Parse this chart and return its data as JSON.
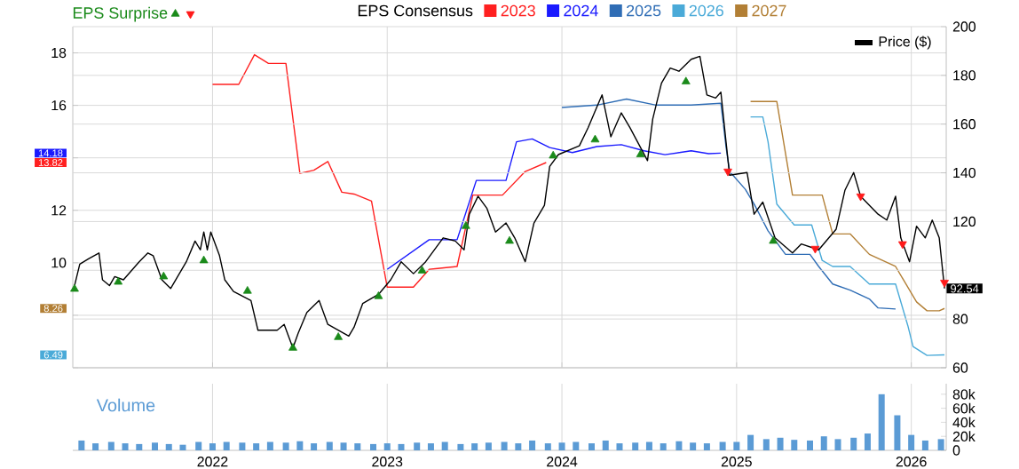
{
  "chart_data": [
    {
      "type": "line",
      "legend": "top",
      "legend_title": "EPS Consensus",
      "grid": true,
      "tick_labels": "y",
      "xlim": [
        2021.2,
        2026.2
      ],
      "xticks": [
        2022,
        2023,
        2024,
        2025,
        2026
      ],
      "ylim": [
        6,
        19
      ],
      "yticks": [
        {
          "value": 6,
          "label": null
        },
        6.49,
        {
          "value": 8,
          "label": null
        },
        8.26,
        10,
        12,
        13.82,
        {
          "value": 14,
          "label": null
        },
        14.18,
        16,
        18
      ],
      "y2lim": [
        60,
        200
      ],
      "y2ticks": [
        60,
        80,
        {
          "value": 100,
          "label": null
        },
        120,
        140,
        160,
        180,
        200
      ],
      "series": [
        {
          "name": "Price ($)",
          "type": "line",
          "axis": "y2",
          "color": "#000000",
          "x": [
            2021.21,
            2021.24,
            2021.29,
            2021.35,
            2021.37,
            2021.41,
            2021.44,
            2021.49,
            2021.58,
            2021.63,
            2021.66,
            2021.71,
            2021.76,
            2021.85,
            2021.9,
            2021.93,
            2021.95,
            2021.97,
            2021.99,
            2022.04,
            2022.07,
            2022.12,
            2022.22,
            2022.26,
            2022.37,
            2022.41,
            2022.46,
            2022.49,
            2022.54,
            2022.61,
            2022.66,
            2022.78,
            2022.81,
            2022.86,
            2022.95,
            2023.02,
            2023.08,
            2023.15,
            2023.22,
            2023.32,
            2023.39,
            2023.44,
            2023.47,
            2023.52,
            2023.57,
            2023.62,
            2023.68,
            2023.73,
            2023.79,
            2023.84,
            2023.9,
            2023.93,
            2023.98,
            2024.1,
            2024.15,
            2024.2,
            2024.23,
            2024.28,
            2024.34,
            2024.39,
            2024.49,
            2024.52,
            2024.57,
            2024.62,
            2024.67,
            2024.74,
            2024.79,
            2024.83,
            2024.88,
            2024.91,
            2024.94,
            2024.96,
            2025.06,
            2025.1,
            2025.15,
            2025.22,
            2025.32,
            2025.37,
            2025.47,
            2025.57,
            2025.62,
            2025.67,
            2025.71,
            2025.81,
            2025.86,
            2025.91,
            2025.94,
            2025.99,
            2026.03,
            2026.08,
            2026.12,
            2026.16,
            2026.19
          ],
          "values": [
            93.7,
            102.5,
            104.7,
            107.1,
            96.1,
            93.7,
            97.4,
            96.1,
            103.5,
            107.1,
            106,
            96.1,
            92.5,
            103.5,
            112,
            108.4,
            115.7,
            108.4,
            115.7,
            106,
            96.1,
            91.3,
            87.6,
            75.4,
            75.4,
            77.8,
            68.1,
            74.1,
            82.7,
            87.6,
            77.8,
            73,
            76.6,
            86.4,
            90.1,
            96.1,
            103.5,
            98.6,
            103.5,
            113.3,
            112,
            108.4,
            123,
            130.4,
            125.5,
            115.7,
            119.4,
            113.3,
            103.5,
            119.4,
            126.7,
            142.6,
            147.5,
            151.1,
            158.5,
            167,
            172,
            154.8,
            164.6,
            158.5,
            145,
            162.1,
            176.8,
            183,
            181.7,
            186.6,
            187.8,
            172,
            170.7,
            173.1,
            152.4,
            139,
            140.1,
            123,
            128,
            113.3,
            107.1,
            110.8,
            108.4,
            116.9,
            132.8,
            140.1,
            130.4,
            123,
            120.6,
            130.4,
            113.3,
            103.5,
            118.1,
            113.3,
            120.6,
            113.3,
            92.54
          ],
          "value_labels": [
            null,
            null,
            null,
            null,
            null,
            null,
            null,
            null,
            null,
            null,
            null,
            null,
            null,
            null,
            null,
            null,
            null,
            null,
            null,
            null,
            null,
            null,
            null,
            null,
            null,
            null,
            null,
            null,
            null,
            null,
            null,
            null,
            null,
            null,
            null,
            null,
            null,
            null,
            null,
            null,
            null,
            null,
            null,
            null,
            null,
            null,
            null,
            null,
            null,
            null,
            null,
            null,
            null,
            null,
            null,
            null,
            null,
            null,
            null,
            null,
            null,
            null,
            null,
            null,
            null,
            null,
            null,
            null,
            null,
            null,
            null,
            null,
            null,
            null,
            null,
            null,
            null,
            null,
            null,
            null,
            null,
            null,
            null,
            null,
            null,
            null,
            null,
            null,
            null,
            null,
            null,
            null,
            "92.54"
          ]
        },
        {
          "name": "2023",
          "type": "line",
          "color": "#ff2020",
          "x": [
            2022.0,
            2022.15,
            2022.24,
            2022.32,
            2022.42,
            2022.5,
            2022.58,
            2022.66,
            2022.74,
            2022.81,
            2022.91,
            2023.0,
            2023.15,
            2023.24,
            2023.4,
            2023.49,
            2023.66,
            2023.79,
            2023.91
          ],
          "values": [
            16.8,
            16.8,
            17.93,
            17.6,
            17.6,
            13.41,
            13.53,
            13.86,
            12.69,
            12.62,
            12.35,
            9.07,
            9.07,
            9.75,
            9.86,
            12.58,
            12.58,
            13.48,
            13.82
          ]
        },
        {
          "name": "2024",
          "type": "line",
          "color": "#1a1aff",
          "x": [
            2023.0,
            2023.24,
            2023.4,
            2023.51,
            2023.68,
            2023.74,
            2023.83,
            2023.93,
            2024.06,
            2024.2,
            2024.34,
            2024.47,
            2024.59,
            2024.74,
            2024.84,
            2024.91
          ],
          "values": [
            9.75,
            10.88,
            10.88,
            13.14,
            13.14,
            14.61,
            14.72,
            14.39,
            14.2,
            14.43,
            14.5,
            14.27,
            14.12,
            14.27,
            14.16,
            14.18
          ]
        },
        {
          "name": "2025",
          "type": "line",
          "color": "#2f6db5",
          "x": [
            2024.0,
            2024.2,
            2024.37,
            2024.54,
            2024.74,
            2024.91,
            2024.94,
            2024.96,
            2025.05,
            2025.1,
            2025.18,
            2025.23,
            2025.28,
            2025.42,
            2025.47,
            2025.55,
            2025.65,
            2025.76,
            2025.81,
            2025.91
          ],
          "values": [
            15.92,
            16.01,
            16.24,
            16.01,
            16.01,
            16.08,
            14.39,
            13.48,
            12.8,
            12.24,
            11.22,
            10.77,
            10.32,
            10.32,
            9.86,
            9.19,
            8.96,
            8.62,
            8.28,
            8.24
          ]
        },
        {
          "name": "2026",
          "type": "line",
          "color": "#4aaad8",
          "x": [
            2025.08,
            2025.15,
            2025.18,
            2025.23,
            2025.33,
            2025.43,
            2025.49,
            2025.55,
            2025.65,
            2025.76,
            2025.91,
            2025.98,
            2026.01,
            2026.09,
            2026.19
          ],
          "values": [
            15.56,
            15.56,
            14.61,
            12.24,
            11.44,
            11.44,
            10.09,
            9.86,
            9.86,
            9.19,
            9.19,
            7.61,
            6.81,
            6.47,
            6.49
          ]
        },
        {
          "name": "2027",
          "type": "line",
          "color": "#b27f35",
          "x": [
            2025.08,
            2025.23,
            2025.32,
            2025.49,
            2025.55,
            2025.65,
            2025.76,
            2025.91,
            2026.03,
            2026.09,
            2026.16,
            2026.19
          ],
          "values": [
            16.15,
            16.15,
            12.58,
            12.58,
            11.1,
            11.1,
            10.32,
            9.86,
            8.51,
            8.17,
            8.17,
            8.26
          ]
        },
        {
          "name": "EPS Surprise",
          "type": "scatter",
          "axis": "y2",
          "marker": "triangle",
          "color": "#1a8a1a",
          "x": [
            2021.21,
            2021.46,
            2021.72,
            2021.95,
            2022.2,
            2022.46,
            2022.72,
            2022.95,
            2023.2,
            2023.45,
            2023.7,
            2023.95,
            2024.19,
            2024.45,
            2024.71,
            2025.21
          ],
          "values": [
            92.3,
            95.2,
            97.4,
            104,
            91.5,
            68.1,
            72.5,
            89.3,
            99.8,
            118.1,
            112,
            147,
            153.6,
            147.5,
            177.4,
            112
          ]
        },
        {
          "type": "scatter",
          "axis": "y2",
          "marker": "triangle_down",
          "color": "#ff1a1a",
          "x": [
            2024.95,
            2025.45,
            2025.71,
            2025.95,
            2026.19
          ],
          "values": [
            140.6,
            108.9,
            130.4,
            110.8,
            95
          ]
        }
      ]
    },
    {
      "type": "bar",
      "title": "Volume",
      "grid": "x",
      "xlim": [
        2021.2,
        2026.2
      ],
      "xticks": [
        2022,
        2023,
        2024,
        2025,
        2026
      ],
      "y2lim": [
        0,
        95000
      ],
      "y2ticks": [
        0,
        {
          "value": 20000,
          "label": "20k"
        },
        {
          "value": 40000,
          "label": "40k"
        },
        {
          "value": 60000,
          "label": "60k"
        },
        {
          "value": 80000,
          "label": "80k"
        }
      ],
      "series": [
        {
          "axis": "y2",
          "color": "#5b9bd5",
          "x": [
            2021.25,
            2021.33,
            2021.42,
            2021.5,
            2021.58,
            2021.67,
            2021.75,
            2021.83,
            2021.92,
            2022.0,
            2022.08,
            2022.17,
            2022.25,
            2022.33,
            2022.42,
            2022.5,
            2022.58,
            2022.67,
            2022.75,
            2022.83,
            2022.92,
            2023.0,
            2023.08,
            2023.17,
            2023.25,
            2023.33,
            2023.42,
            2023.5,
            2023.58,
            2023.67,
            2023.75,
            2023.83,
            2023.92,
            2024.0,
            2024.08,
            2024.17,
            2024.25,
            2024.33,
            2024.42,
            2024.5,
            2024.58,
            2024.67,
            2024.75,
            2024.83,
            2024.92,
            2025.0,
            2025.08,
            2025.17,
            2025.25,
            2025.33,
            2025.42,
            2025.5,
            2025.58,
            2025.67,
            2025.75,
            2025.83,
            2025.92,
            2026.0,
            2026.08,
            2026.17
          ],
          "values": [
            14000,
            10000,
            12000,
            10000,
            9000,
            11000,
            9000,
            8000,
            12000,
            10000,
            12000,
            11000,
            10000,
            12000,
            11000,
            13000,
            10000,
            12000,
            11000,
            10000,
            9000,
            10000,
            9000,
            11000,
            10000,
            12000,
            9000,
            10000,
            11000,
            12000,
            10000,
            14000,
            10000,
            11000,
            12000,
            10000,
            14000,
            10000,
            11000,
            12000,
            10000,
            13000,
            11000,
            10000,
            12000,
            12000,
            22000,
            16000,
            18000,
            15000,
            14000,
            20000,
            16000,
            18000,
            24000,
            80000,
            50000,
            22000,
            14000,
            16000
          ]
        }
      ]
    }
  ]
}
